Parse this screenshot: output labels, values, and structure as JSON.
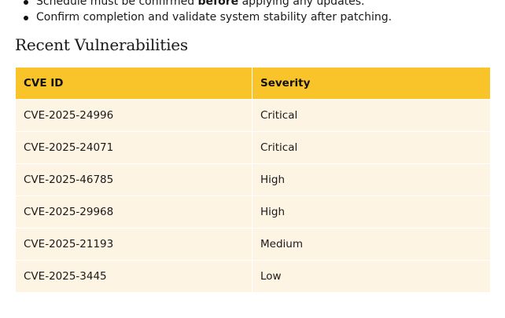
{
  "steps": {
    "items": [
      {
        "before": "Schedule must be confirmed ",
        "bold": "before",
        "after": " applying any updates."
      },
      {
        "text": "Confirm completion and validate system stability after patching."
      }
    ]
  },
  "section": {
    "title": "Recent Vulnerabilities"
  },
  "table": {
    "headers": [
      "CVE ID",
      "Severity"
    ],
    "rows": [
      [
        "CVE-2025-24996",
        "Critical"
      ],
      [
        "CVE-2025-24071",
        "Critical"
      ],
      [
        "CVE-2025-46785",
        "High"
      ],
      [
        "CVE-2025-29968",
        "High"
      ],
      [
        "CVE-2025-21193",
        "Medium"
      ],
      [
        "CVE-2025-3445",
        "Low"
      ]
    ]
  },
  "colors": {
    "header_bg": "#f8c42a",
    "row_bg": "#fef4e4"
  }
}
